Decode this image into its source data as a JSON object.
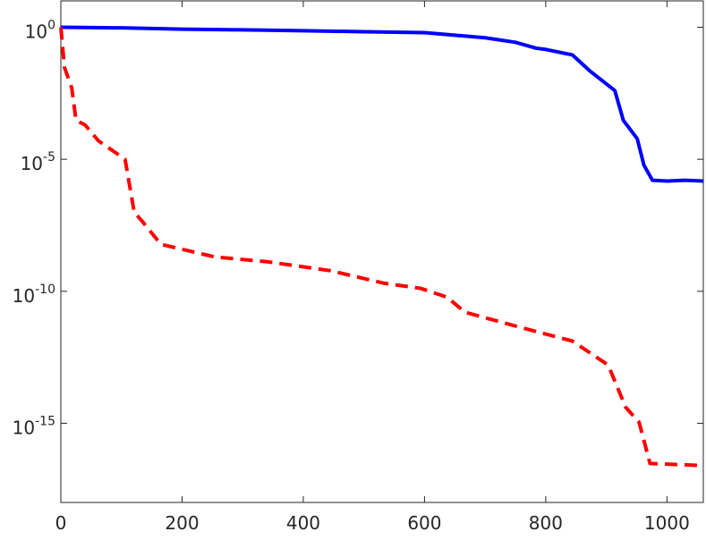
{
  "chart_data": {
    "type": "line",
    "log_y": true,
    "x": [
      0,
      100,
      200,
      300,
      400,
      500,
      600,
      650,
      700,
      750,
      785,
      800,
      844,
      873,
      914,
      928,
      951,
      962,
      976,
      1000,
      1030,
      1060
    ],
    "series": [
      {
        "color": "#0000ff",
        "dash": "solid",
        "x": [
          0,
          100,
          200,
          300,
          400,
          500,
          600,
          650,
          700,
          750,
          785,
          800,
          844,
          873,
          914,
          928,
          951,
          962,
          976,
          1000,
          1030,
          1060
        ],
        "values": [
          1,
          0.95,
          0.85,
          0.8,
          0.74,
          0.68,
          0.63,
          0.5,
          0.4,
          0.27,
          0.16,
          0.145,
          0.09,
          0.022,
          0.004,
          0.0003,
          6e-05,
          6e-06,
          1.6e-06,
          1.5e-06,
          1.6e-06,
          1.5e-06
        ]
      },
      {
        "color": "#ff0000",
        "dash": "dashed",
        "x": [
          0,
          6,
          18,
          25,
          40,
          62,
          106,
          121,
          136,
          165,
          254,
          342,
          445,
          534,
          593,
          637,
          667,
          755,
          844,
          903,
          932,
          954,
          972,
          1059
        ],
        "values": [
          1,
          0.03,
          0.005,
          0.0003,
          0.0002,
          5e-05,
          1e-05,
          1e-07,
          4e-08,
          6e-09,
          2e-09,
          1.3e-09,
          6e-10,
          2e-10,
          1.3e-10,
          6e-11,
          1.6e-11,
          4.5e-12,
          1.3e-12,
          1.6e-13,
          4e-15,
          1.1e-15,
          3e-17,
          2.5e-17
        ]
      }
    ],
    "xlim": [
      0,
      1060
    ],
    "ylim": [
      1e-18,
      10
    ],
    "xticks": [
      0,
      200,
      400,
      600,
      800,
      1000
    ],
    "yticks": [
      {
        "value": 1,
        "label": "10^0"
      },
      {
        "value": 1e-05,
        "label": "10^-5"
      },
      {
        "value": 1e-10,
        "label": "10^-10"
      },
      {
        "value": 1e-15,
        "label": "10^-15"
      }
    ]
  }
}
